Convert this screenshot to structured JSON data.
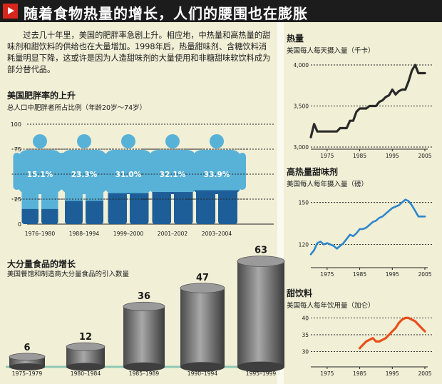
{
  "header": {
    "title": "随着食物热量的增长，人们的腰围也在膨胀"
  },
  "intro": {
    "text": "过去几十年里，美国的肥胖率急剧上升。相应地，中热量和高热量的甜味剂和甜饮料的供给也在大量增加。1998年后，热量甜味剂、含糖饮料消耗量明显下降，这或许是因为人造甜味剂的大量使用和非糖甜味软饮料成为部分替代品。"
  },
  "colors": {
    "body_fill": "#58b2d8",
    "fat_fill": "#1e5e98",
    "calorie_line": "#2a2a2a",
    "sweetener_line": "#2e86cc",
    "beverage_line": "#e8501a",
    "cylinder": "#777777"
  },
  "chart_data": [
    {
      "type": "bar",
      "title": "美国肥胖率的上升",
      "subtitle": "总人口中肥胖者所占比例（年龄20岁～74岁）",
      "categories": [
        "1976–1980",
        "1988–1994",
        "1999–2000",
        "2001–2002",
        "2003–2004"
      ],
      "values": [
        15.1,
        23.3,
        31.0,
        32.1,
        33.9
      ],
      "value_labels": [
        "15.1%",
        "23.3%",
        "31.0%",
        "32.1%",
        "33.9%"
      ],
      "ylim": [
        0,
        100
      ],
      "yticks": [
        0,
        25,
        50,
        75,
        100
      ],
      "grid": true
    },
    {
      "type": "bar",
      "title": "大分量食品的增长",
      "subtitle": "美国餐馆和制造商大分量食品的引入数量",
      "categories": [
        "1975–1979",
        "1980–1984",
        "1985–1989",
        "1990–1994",
        "1995–1999"
      ],
      "values": [
        6,
        12,
        36,
        47,
        63
      ],
      "ylim": [
        0,
        63
      ]
    },
    {
      "type": "line",
      "title": "热量",
      "subtitle": "美国每人每天摄入量（千卡）",
      "x": [
        1970,
        1971,
        1972,
        1973,
        1974,
        1975,
        1976,
        1977,
        1978,
        1979,
        1980,
        1981,
        1982,
        1983,
        1984,
        1985,
        1986,
        1987,
        1988,
        1989,
        1990,
        1991,
        1992,
        1993,
        1994,
        1995,
        1996,
        1997,
        1998,
        1999,
        2000,
        2001,
        2002,
        2003,
        2004,
        2005
      ],
      "values": [
        3120,
        3280,
        3190,
        3190,
        3190,
        3190,
        3190,
        3190,
        3190,
        3230,
        3230,
        3230,
        3320,
        3320,
        3430,
        3470,
        3470,
        3470,
        3500,
        3500,
        3500,
        3550,
        3570,
        3610,
        3630,
        3700,
        3640,
        3680,
        3700,
        3700,
        3800,
        3930,
        4000,
        3900,
        3900,
        3900
      ],
      "xticks": [
        1975,
        1985,
        1995,
        2005
      ],
      "xlim": [
        1970,
        2005
      ],
      "ylim": [
        3000,
        4000
      ],
      "yticks": [
        3000,
        3500,
        4000
      ],
      "ytick_labels": [
        "3,000",
        "3,500",
        "4,000"
      ],
      "grid": true
    },
    {
      "type": "line",
      "title": "高热量甜味剂",
      "subtitle": "美国每人每年摄入量（磅）",
      "x": [
        1970,
        1971,
        1972,
        1973,
        1974,
        1975,
        1976,
        1977,
        1978,
        1979,
        1980,
        1981,
        1982,
        1983,
        1984,
        1985,
        1986,
        1987,
        1988,
        1989,
        1990,
        1991,
        1992,
        1993,
        1994,
        1995,
        1996,
        1997,
        1998,
        1999,
        2000,
        2001,
        2002,
        2003,
        2004,
        2005
      ],
      "values": [
        113,
        116,
        121,
        122,
        120,
        121,
        120,
        119,
        117,
        119,
        121,
        124,
        127,
        126,
        128,
        131,
        131,
        132,
        134,
        136,
        137,
        139,
        140,
        142,
        144,
        146,
        147,
        148,
        150,
        152,
        151,
        148,
        144,
        140,
        140,
        140
      ],
      "xticks": [
        1975,
        1985,
        1995,
        2005
      ],
      "xlim": [
        1970,
        2005
      ],
      "ylim": [
        105,
        160
      ],
      "yticks": [
        120,
        150
      ],
      "ytick_labels": [
        "120",
        "150"
      ],
      "grid": true
    },
    {
      "type": "line",
      "title": "甜饮料",
      "subtitle": "美国每人每年饮用量（加仑）",
      "x": [
        1985,
        1986,
        1987,
        1988,
        1989,
        1990,
        1991,
        1992,
        1993,
        1994,
        1995,
        1996,
        1997,
        1998,
        1999,
        2000,
        2001,
        2002,
        2003,
        2004,
        2005
      ],
      "values": [
        31,
        32,
        33,
        33.5,
        34,
        33,
        33,
        33.5,
        34,
        35,
        36,
        37,
        38.5,
        39.5,
        40,
        40,
        39.5,
        39,
        38,
        37,
        36
      ],
      "xticks": [
        1975,
        1985,
        1995,
        2005
      ],
      "xlim": [
        1970,
        2005
      ],
      "ylim": [
        28,
        42
      ],
      "yticks": [
        30,
        35,
        40
      ],
      "ytick_labels": [
        "30",
        "35",
        "40"
      ],
      "grid": true
    }
  ]
}
